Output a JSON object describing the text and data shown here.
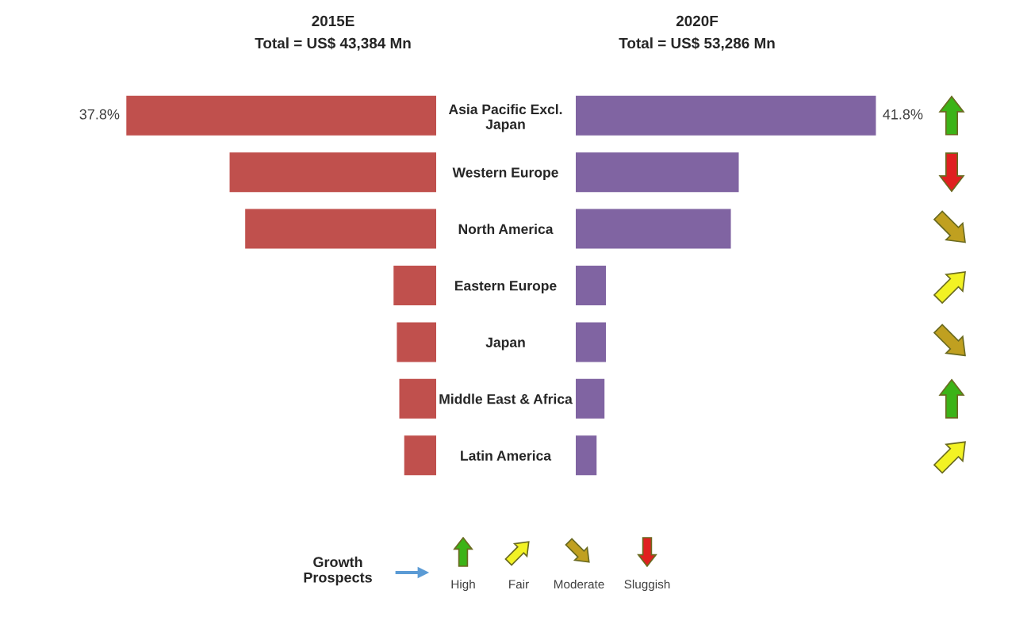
{
  "chart_data": [
    {
      "type": "bar",
      "orientation": "horizontal",
      "title": "2015E",
      "subtitle": "Total = US$ 43,384 Mn",
      "tick_labels": "y",
      "categories": [
        "Asia Pacific Excl.\nJapan",
        "Western Europe",
        "North America",
        "Eastern Europe",
        "Japan",
        "Middle East & Africa",
        "Latin America"
      ],
      "series": [
        {
          "color": "#c0504d",
          "values": [
            37.8,
            25.2,
            23.3,
            5.2,
            4.8,
            4.5,
            3.9
          ],
          "value_labels": [
            "37.8%",
            null,
            null,
            null,
            null,
            null,
            null
          ]
        }
      ]
    },
    {
      "type": "bar",
      "orientation": "horizontal",
      "title": "2020F",
      "subtitle": "Total = US$ 53,286 Mn",
      "tick_labels": false,
      "categories": [
        null,
        null,
        null,
        null,
        null,
        null,
        null
      ],
      "series": [
        {
          "color": "#8064a2",
          "values": [
            41.8,
            22.7,
            21.6,
            4.2,
            4.2,
            4.0,
            2.9
          ],
          "value_labels": [
            "41.8%",
            null,
            null,
            null,
            null,
            null,
            null
          ]
        }
      ],
      "annotations": [
        "Growth\nProspects",
        "High",
        "Fair",
        "Moderate",
        "Sluggish"
      ]
    }
  ]
}
